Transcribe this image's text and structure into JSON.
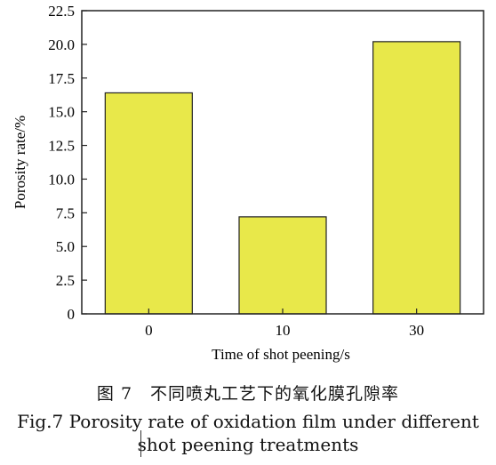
{
  "chart_data": {
    "type": "bar",
    "categories": [
      "0",
      "10",
      "30"
    ],
    "values": [
      16.4,
      7.2,
      20.2
    ],
    "xlabel": "Time of shot peening/s",
    "ylabel": "Porosity rate/%",
    "ylim": [
      0,
      22.5
    ],
    "yticks": [
      "0",
      "2.5",
      "5.0",
      "7.5",
      "10.0",
      "12.5",
      "15.0",
      "17.5",
      "20.0",
      "22.5"
    ],
    "grid": false,
    "bar_color": "#e8e84a",
    "bar_edge_color": "#222222"
  },
  "caption": {
    "chinese": "图 7　不同喷丸工艺下的氧化膜孔隙率",
    "english_line1": "Fig.7 Porosity rate of oxidation film under different",
    "english_line2": "shot peening treatments"
  }
}
